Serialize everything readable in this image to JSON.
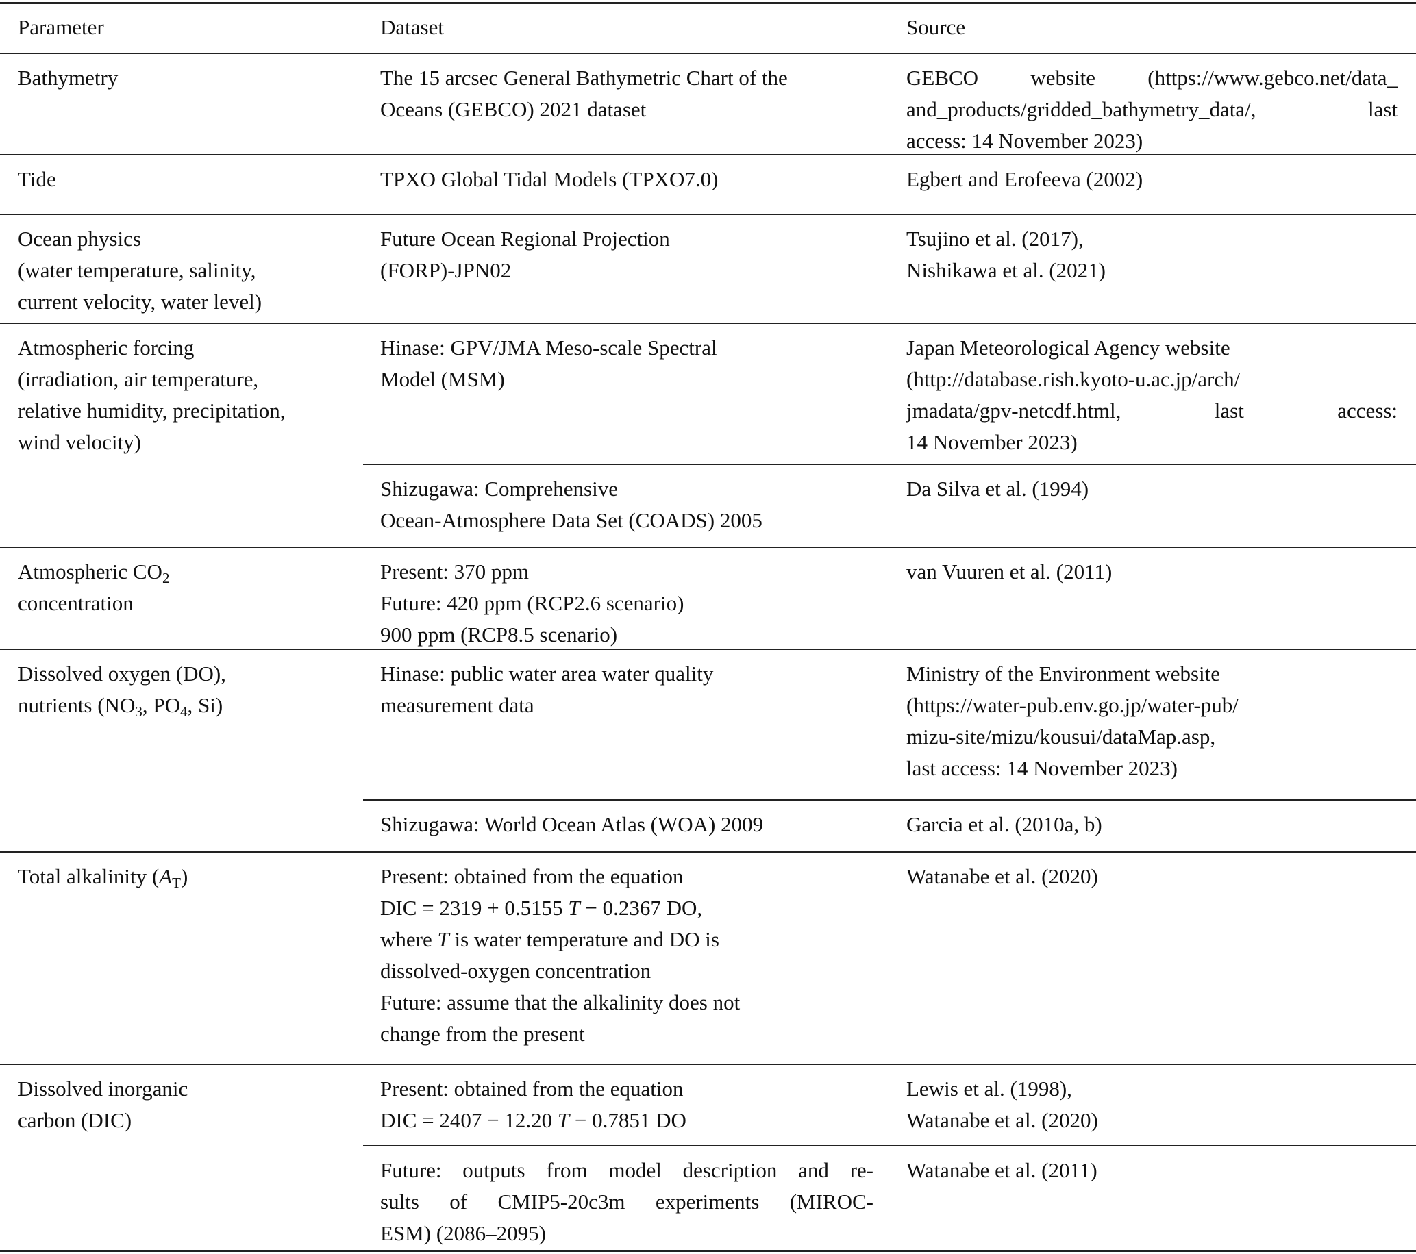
{
  "headers": [
    "Parameter",
    "Dataset",
    "Source"
  ],
  "rows": [
    {
      "parameter": [],
      "dataset": [],
      "source": []
    }
  ],
  "table": [
    {
      "p": [
        "Bathymetry"
      ],
      "d": [
        "The 15 arcsec General Bathymetric Chart of the",
        "Oceans (GEBCO) 2021 dataset"
      ],
      "s": [
        "GEBCO website (https://www.gebco.net/data_",
        "and_products/gridded_bathymetry_data/, last",
        "access: 14 November 2023)"
      ]
    },
    {
      "p": [
        "Tide"
      ],
      "d": [
        "TPXO Global Tidal Models (TPXO7.0)"
      ],
      "s": [
        "Egbert and Erofeeva (2002)"
      ]
    },
    {
      "p": [
        "Ocean physics",
        "(water temperature, salinity,",
        "current velocity, water level)"
      ],
      "d": [
        "Future Ocean Regional Projection",
        "(FORP)-JPN02"
      ],
      "s": [
        "Tsujino et al. (2017),",
        "Nishikawa et al. (2021)"
      ]
    },
    {
      "p": [
        "Atmospheric forcing",
        "(irradiation, air temperature,",
        "relative humidity, precipitation,",
        "wind velocity)"
      ],
      "d": [
        "Hinase: GPV/JMA Meso-scale Spectral",
        "Model (MSM)"
      ],
      "s": [
        "Japan Meteorological Agency website",
        "(http://database.rish.kyoto-u.ac.jp/arch/",
        "jmadata/gpv-netcdf.html, last access:",
        "14 November 2023)"
      ]
    },
    {
      "p": [],
      "d": [
        "Shizugawa: Comprehensive",
        "Ocean-Atmosphere Data Set (COADS) 2005"
      ],
      "s": [
        "Da Silva et al. (1994)"
      ]
    },
    {
      "p": [
        [
          {
            "t": "Atmospheric CO"
          },
          {
            "sub": "2"
          }
        ],
        "concentration"
      ],
      "d": [
        "Present: 370 ppm",
        "Future: 420 ppm (RCP2.6 scenario)",
        "900 ppm (RCP8.5 scenario)"
      ],
      "s": [
        "van Vuuren et al. (2011)"
      ]
    },
    {
      "p": [
        "Dissolved oxygen (DO),",
        [
          {
            "t": "nutrients (NO"
          },
          {
            "sub": "3"
          },
          {
            "t": ", PO"
          },
          {
            "sub": "4"
          },
          {
            "t": ", Si)"
          }
        ]
      ],
      "d": [
        "Hinase: public water area water quality",
        "measurement data"
      ],
      "s": [
        "Ministry of the Environment website",
        "(https://water-pub.env.go.jp/water-pub/",
        "mizu-site/mizu/kousui/dataMap.asp,",
        "last access: 14 November 2023)"
      ]
    },
    {
      "p": [],
      "d": [
        "Shizugawa: World Ocean Atlas (WOA) 2009"
      ],
      "s": [
        "Garcia et al. (2010a, b)"
      ]
    },
    {
      "p": [
        [
          {
            "t": "Total alkalinity ("
          },
          {
            "i": "A"
          },
          {
            "sub": "T"
          },
          {
            "t": ")"
          }
        ]
      ],
      "d": [
        "Present: obtained from the equation",
        [
          {
            "t": "DIC = 2319 + 0.5155 "
          },
          {
            "i": "T"
          },
          {
            "t": " − 0.2367 DO,"
          }
        ],
        [
          {
            "t": "where "
          },
          {
            "i": "T"
          },
          {
            "t": " is water temperature and DO is"
          }
        ],
        "dissolved-oxygen concentration",
        "Future: assume that the alkalinity does not",
        "change from the present"
      ],
      "s": [
        "Watanabe et al. (2020)"
      ]
    },
    {
      "p": [
        "Dissolved inorganic",
        "carbon (DIC)"
      ],
      "d": [
        "Present: obtained from the equation",
        [
          {
            "t": "DIC = 2407 − 12.20 "
          },
          {
            "i": "T"
          },
          {
            "t": " − 0.7851 DO"
          }
        ]
      ],
      "s": [
        "Lewis et al. (1998),",
        "Watanabe et al. (2020)"
      ]
    },
    {
      "p": [],
      "d": [
        "Future: outputs from model description and re-",
        "sults of CMIP5-20c3m experiments (MIROC-",
        "ESM) (2086–2095)"
      ],
      "s": [
        "Watanabe et al. (2011)"
      ]
    }
  ]
}
